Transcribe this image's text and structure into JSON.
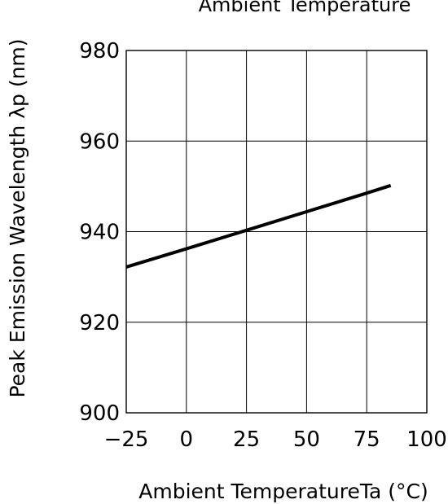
{
  "chart_data": {
    "type": "line",
    "title": "Ambient Temperature",
    "xlabel": "Ambient TemperatureTa (°C)",
    "ylabel": "Peak Emission Wavelength λp (nm)",
    "xlim": [
      -25,
      100
    ],
    "ylim": [
      900,
      980
    ],
    "x_ticks": [
      -25,
      0,
      25,
      50,
      75,
      100
    ],
    "y_ticks": [
      900,
      920,
      940,
      960,
      980
    ],
    "x_tick_labels": [
      "−25",
      "0",
      "25",
      "50",
      "75",
      "100"
    ],
    "y_tick_labels": [
      "900",
      "920",
      "940",
      "960",
      "980"
    ],
    "grid": true,
    "series": [
      {
        "x": [
          -25,
          0,
          25,
          50,
          75,
          85
        ],
        "y": [
          932.2,
          936.2,
          940.3,
          944.4,
          948.5,
          950.2
        ]
      }
    ],
    "colors": {
      "line": "#000000",
      "grid": "#000000",
      "background": "#ffffff"
    }
  }
}
